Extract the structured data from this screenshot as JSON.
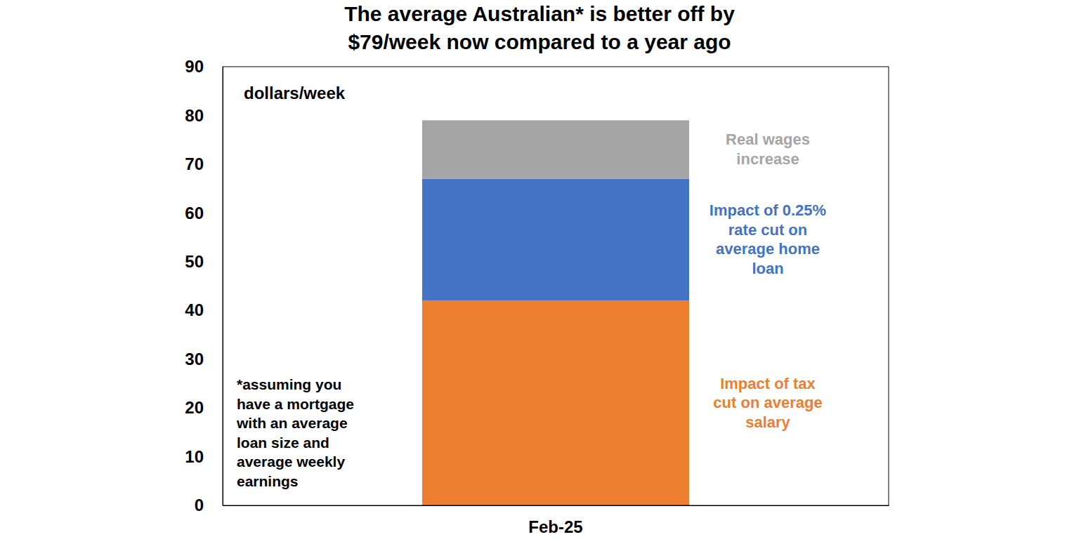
{
  "chart_data": {
    "type": "bar",
    "stacked": true,
    "title": [
      "The average Australian* is better off by",
      "$79/week now compared to a year ago"
    ],
    "y_label": "dollars/week",
    "annotation": "*assuming you have a mortgage with an average loan size and average weekly earnings",
    "categories": [
      "Feb-25"
    ],
    "series": [
      {
        "name": "Impact of tax cut on average salary",
        "color": "#ed7d31",
        "values": [
          42
        ]
      },
      {
        "name": "Impact of 0.25% rate cut on average home loan",
        "color": "#4472c4",
        "values": [
          25
        ]
      },
      {
        "name": "Real wages increase",
        "color": "#a5a5a5",
        "values": [
          12
        ]
      }
    ],
    "ylim": [
      0,
      90
    ],
    "yticks": [
      0,
      10,
      20,
      30,
      40,
      50,
      60,
      70,
      80,
      90
    ],
    "grid": false
  }
}
